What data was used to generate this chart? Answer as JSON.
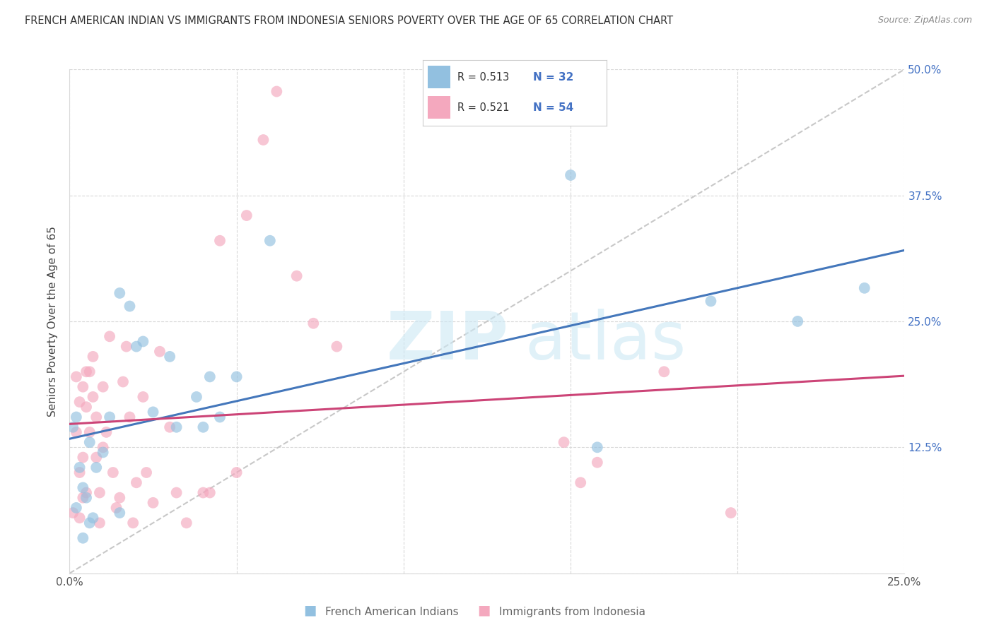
{
  "title": "FRENCH AMERICAN INDIAN VS IMMIGRANTS FROM INDONESIA SENIORS POVERTY OVER THE AGE OF 65 CORRELATION CHART",
  "source": "Source: ZipAtlas.com",
  "ylabel": "Seniors Poverty Over the Age of 65",
  "xmin": 0.0,
  "xmax": 0.25,
  "ymin": 0.0,
  "ymax": 0.5,
  "xticks": [
    0.0,
    0.05,
    0.1,
    0.15,
    0.2,
    0.25
  ],
  "xtick_labels": [
    "0.0%",
    "",
    "",
    "",
    "",
    "25.0%"
  ],
  "ytick_positions": [
    0.0,
    0.125,
    0.25,
    0.375,
    0.5
  ],
  "ytick_labels": [
    "",
    "12.5%",
    "25.0%",
    "37.5%",
    "50.0%"
  ],
  "blue_color": "#92c0e0",
  "pink_color": "#f4a8be",
  "blue_line_color": "#4477bb",
  "pink_line_color": "#cc4477",
  "dashed_line_color": "#c8c8c8",
  "grid_color": "#d9d9d9",
  "legend_label1": "French American Indians",
  "legend_label2": "Immigrants from Indonesia",
  "blue_N": "32",
  "pink_N": "54",
  "blue_R": "0.513",
  "pink_R": "0.521",
  "blue_scatter_x": [
    0.001,
    0.002,
    0.002,
    0.003,
    0.004,
    0.004,
    0.005,
    0.006,
    0.006,
    0.007,
    0.008,
    0.01,
    0.012,
    0.015,
    0.015,
    0.018,
    0.02,
    0.022,
    0.025,
    0.03,
    0.032,
    0.038,
    0.04,
    0.042,
    0.045,
    0.05,
    0.06,
    0.15,
    0.158,
    0.192,
    0.218,
    0.238
  ],
  "blue_scatter_y": [
    0.145,
    0.065,
    0.155,
    0.105,
    0.035,
    0.085,
    0.075,
    0.13,
    0.05,
    0.055,
    0.105,
    0.12,
    0.155,
    0.06,
    0.278,
    0.265,
    0.225,
    0.23,
    0.16,
    0.215,
    0.145,
    0.175,
    0.145,
    0.195,
    0.155,
    0.195,
    0.33,
    0.395,
    0.125,
    0.27,
    0.25,
    0.283
  ],
  "pink_scatter_x": [
    0.001,
    0.002,
    0.002,
    0.003,
    0.003,
    0.003,
    0.004,
    0.004,
    0.004,
    0.005,
    0.005,
    0.005,
    0.006,
    0.006,
    0.007,
    0.007,
    0.008,
    0.008,
    0.009,
    0.009,
    0.01,
    0.01,
    0.011,
    0.012,
    0.013,
    0.014,
    0.015,
    0.016,
    0.017,
    0.018,
    0.019,
    0.02,
    0.022,
    0.023,
    0.025,
    0.027,
    0.03,
    0.032,
    0.035,
    0.04,
    0.042,
    0.045,
    0.05,
    0.053,
    0.058,
    0.062,
    0.068,
    0.073,
    0.08,
    0.148,
    0.153,
    0.158,
    0.178,
    0.198
  ],
  "pink_scatter_y": [
    0.06,
    0.195,
    0.14,
    0.17,
    0.1,
    0.055,
    0.185,
    0.075,
    0.115,
    0.08,
    0.2,
    0.165,
    0.14,
    0.2,
    0.215,
    0.175,
    0.155,
    0.115,
    0.08,
    0.05,
    0.125,
    0.185,
    0.14,
    0.235,
    0.1,
    0.065,
    0.075,
    0.19,
    0.225,
    0.155,
    0.05,
    0.09,
    0.175,
    0.1,
    0.07,
    0.22,
    0.145,
    0.08,
    0.05,
    0.08,
    0.08,
    0.33,
    0.1,
    0.355,
    0.43,
    0.478,
    0.295,
    0.248,
    0.225,
    0.13,
    0.09,
    0.11,
    0.2,
    0.06
  ]
}
